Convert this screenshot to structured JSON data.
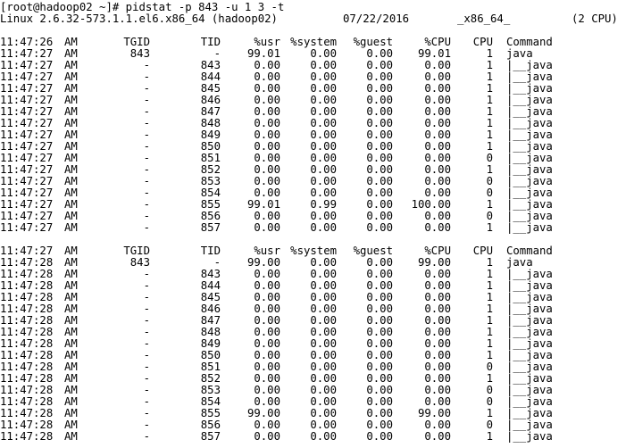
{
  "terminal": {
    "prompt_line": "[root@hadoop02 ~]# pidstat -p 843 -u 1 3 -t",
    "sysinfo": {
      "kernel": "Linux 2.6.32-573.1.1.el6.x86_64 (hadoop02)",
      "date": "07/22/2016",
      "arch": "_x86_64_",
      "cpus": "(2 CPU)"
    },
    "blocks": [
      {
        "header": {
          "time": "11:47:26",
          "ampm": "AM",
          "tgid": "TGID",
          "tid": "TID",
          "usr": "%usr",
          "system": "%system",
          "guest": "%guest",
          "cpu": "%CPU",
          "cpu_num": "CPU",
          "command": "Command"
        },
        "rows": [
          {
            "time": "11:47:27",
            "ampm": "AM",
            "tgid": "843",
            "tid": "-",
            "usr": "99.01",
            "system": "0.00",
            "guest": "0.00",
            "cpu": "99.01",
            "cpu_num": "1",
            "command": "java"
          },
          {
            "time": "11:47:27",
            "ampm": "AM",
            "tgid": "-",
            "tid": "843",
            "usr": "0.00",
            "system": "0.00",
            "guest": "0.00",
            "cpu": "0.00",
            "cpu_num": "1",
            "command": "|__java"
          },
          {
            "time": "11:47:27",
            "ampm": "AM",
            "tgid": "-",
            "tid": "844",
            "usr": "0.00",
            "system": "0.00",
            "guest": "0.00",
            "cpu": "0.00",
            "cpu_num": "1",
            "command": "|__java"
          },
          {
            "time": "11:47:27",
            "ampm": "AM",
            "tgid": "-",
            "tid": "845",
            "usr": "0.00",
            "system": "0.00",
            "guest": "0.00",
            "cpu": "0.00",
            "cpu_num": "1",
            "command": "|__java"
          },
          {
            "time": "11:47:27",
            "ampm": "AM",
            "tgid": "-",
            "tid": "846",
            "usr": "0.00",
            "system": "0.00",
            "guest": "0.00",
            "cpu": "0.00",
            "cpu_num": "1",
            "command": "|__java"
          },
          {
            "time": "11:47:27",
            "ampm": "AM",
            "tgid": "-",
            "tid": "847",
            "usr": "0.00",
            "system": "0.00",
            "guest": "0.00",
            "cpu": "0.00",
            "cpu_num": "1",
            "command": "|__java"
          },
          {
            "time": "11:47:27",
            "ampm": "AM",
            "tgid": "-",
            "tid": "848",
            "usr": "0.00",
            "system": "0.00",
            "guest": "0.00",
            "cpu": "0.00",
            "cpu_num": "1",
            "command": "|__java"
          },
          {
            "time": "11:47:27",
            "ampm": "AM",
            "tgid": "-",
            "tid": "849",
            "usr": "0.00",
            "system": "0.00",
            "guest": "0.00",
            "cpu": "0.00",
            "cpu_num": "1",
            "command": "|__java"
          },
          {
            "time": "11:47:27",
            "ampm": "AM",
            "tgid": "-",
            "tid": "850",
            "usr": "0.00",
            "system": "0.00",
            "guest": "0.00",
            "cpu": "0.00",
            "cpu_num": "1",
            "command": "|__java"
          },
          {
            "time": "11:47:27",
            "ampm": "AM",
            "tgid": "-",
            "tid": "851",
            "usr": "0.00",
            "system": "0.00",
            "guest": "0.00",
            "cpu": "0.00",
            "cpu_num": "0",
            "command": "|__java"
          },
          {
            "time": "11:47:27",
            "ampm": "AM",
            "tgid": "-",
            "tid": "852",
            "usr": "0.00",
            "system": "0.00",
            "guest": "0.00",
            "cpu": "0.00",
            "cpu_num": "1",
            "command": "|__java"
          },
          {
            "time": "11:47:27",
            "ampm": "AM",
            "tgid": "-",
            "tid": "853",
            "usr": "0.00",
            "system": "0.00",
            "guest": "0.00",
            "cpu": "0.00",
            "cpu_num": "0",
            "command": "|__java"
          },
          {
            "time": "11:47:27",
            "ampm": "AM",
            "tgid": "-",
            "tid": "854",
            "usr": "0.00",
            "system": "0.00",
            "guest": "0.00",
            "cpu": "0.00",
            "cpu_num": "0",
            "command": "|__java"
          },
          {
            "time": "11:47:27",
            "ampm": "AM",
            "tgid": "-",
            "tid": "855",
            "usr": "99.01",
            "system": "0.99",
            "guest": "0.00",
            "cpu": "100.00",
            "cpu_num": "1",
            "command": "|__java"
          },
          {
            "time": "11:47:27",
            "ampm": "AM",
            "tgid": "-",
            "tid": "856",
            "usr": "0.00",
            "system": "0.00",
            "guest": "0.00",
            "cpu": "0.00",
            "cpu_num": "0",
            "command": "|__java"
          },
          {
            "time": "11:47:27",
            "ampm": "AM",
            "tgid": "-",
            "tid": "857",
            "usr": "0.00",
            "system": "0.00",
            "guest": "0.00",
            "cpu": "0.00",
            "cpu_num": "1",
            "command": "|__java"
          }
        ]
      },
      {
        "header": {
          "time": "11:47:27",
          "ampm": "AM",
          "tgid": "TGID",
          "tid": "TID",
          "usr": "%usr",
          "system": "%system",
          "guest": "%guest",
          "cpu": "%CPU",
          "cpu_num": "CPU",
          "command": "Command"
        },
        "rows": [
          {
            "time": "11:47:28",
            "ampm": "AM",
            "tgid": "843",
            "tid": "-",
            "usr": "99.00",
            "system": "0.00",
            "guest": "0.00",
            "cpu": "99.00",
            "cpu_num": "1",
            "command": "java"
          },
          {
            "time": "11:47:28",
            "ampm": "AM",
            "tgid": "-",
            "tid": "843",
            "usr": "0.00",
            "system": "0.00",
            "guest": "0.00",
            "cpu": "0.00",
            "cpu_num": "1",
            "command": "|__java"
          },
          {
            "time": "11:47:28",
            "ampm": "AM",
            "tgid": "-",
            "tid": "844",
            "usr": "0.00",
            "system": "0.00",
            "guest": "0.00",
            "cpu": "0.00",
            "cpu_num": "1",
            "command": "|__java"
          },
          {
            "time": "11:47:28",
            "ampm": "AM",
            "tgid": "-",
            "tid": "845",
            "usr": "0.00",
            "system": "0.00",
            "guest": "0.00",
            "cpu": "0.00",
            "cpu_num": "1",
            "command": "|__java"
          },
          {
            "time": "11:47:28",
            "ampm": "AM",
            "tgid": "-",
            "tid": "846",
            "usr": "0.00",
            "system": "0.00",
            "guest": "0.00",
            "cpu": "0.00",
            "cpu_num": "1",
            "command": "|__java"
          },
          {
            "time": "11:47:28",
            "ampm": "AM",
            "tgid": "-",
            "tid": "847",
            "usr": "0.00",
            "system": "0.00",
            "guest": "0.00",
            "cpu": "0.00",
            "cpu_num": "1",
            "command": "|__java"
          },
          {
            "time": "11:47:28",
            "ampm": "AM",
            "tgid": "-",
            "tid": "848",
            "usr": "0.00",
            "system": "0.00",
            "guest": "0.00",
            "cpu": "0.00",
            "cpu_num": "1",
            "command": "|__java"
          },
          {
            "time": "11:47:28",
            "ampm": "AM",
            "tgid": "-",
            "tid": "849",
            "usr": "0.00",
            "system": "0.00",
            "guest": "0.00",
            "cpu": "0.00",
            "cpu_num": "1",
            "command": "|__java"
          },
          {
            "time": "11:47:28",
            "ampm": "AM",
            "tgid": "-",
            "tid": "850",
            "usr": "0.00",
            "system": "0.00",
            "guest": "0.00",
            "cpu": "0.00",
            "cpu_num": "1",
            "command": "|__java"
          },
          {
            "time": "11:47:28",
            "ampm": "AM",
            "tgid": "-",
            "tid": "851",
            "usr": "0.00",
            "system": "0.00",
            "guest": "0.00",
            "cpu": "0.00",
            "cpu_num": "0",
            "command": "|__java"
          },
          {
            "time": "11:47:28",
            "ampm": "AM",
            "tgid": "-",
            "tid": "852",
            "usr": "0.00",
            "system": "0.00",
            "guest": "0.00",
            "cpu": "0.00",
            "cpu_num": "1",
            "command": "|__java"
          },
          {
            "time": "11:47:28",
            "ampm": "AM",
            "tgid": "-",
            "tid": "853",
            "usr": "0.00",
            "system": "0.00",
            "guest": "0.00",
            "cpu": "0.00",
            "cpu_num": "0",
            "command": "|__java"
          },
          {
            "time": "11:47:28",
            "ampm": "AM",
            "tgid": "-",
            "tid": "854",
            "usr": "0.00",
            "system": "0.00",
            "guest": "0.00",
            "cpu": "0.00",
            "cpu_num": "0",
            "command": "|__java"
          },
          {
            "time": "11:47:28",
            "ampm": "AM",
            "tgid": "-",
            "tid": "855",
            "usr": "99.00",
            "system": "0.00",
            "guest": "0.00",
            "cpu": "99.00",
            "cpu_num": "1",
            "command": "|__java"
          },
          {
            "time": "11:47:28",
            "ampm": "AM",
            "tgid": "-",
            "tid": "856",
            "usr": "0.00",
            "system": "0.00",
            "guest": "0.00",
            "cpu": "0.00",
            "cpu_num": "0",
            "command": "|__java"
          },
          {
            "time": "11:47:28",
            "ampm": "AM",
            "tgid": "-",
            "tid": "857",
            "usr": "0.00",
            "system": "0.00",
            "guest": "0.00",
            "cpu": "0.00",
            "cpu_num": "1",
            "command": "|__java"
          }
        ]
      }
    ]
  }
}
